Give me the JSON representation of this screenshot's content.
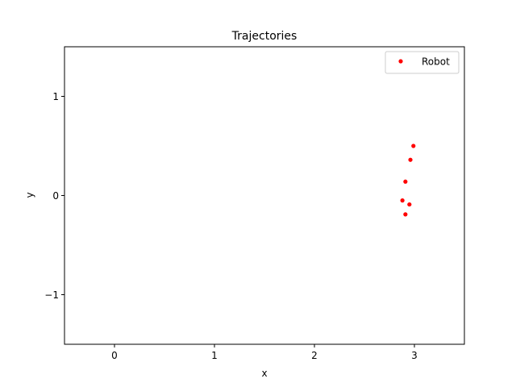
{
  "chart_data": {
    "type": "scatter",
    "title": "Trajectories",
    "xlabel": "x",
    "ylabel": "y",
    "xlim": [
      -0.5,
      3.5
    ],
    "ylim": [
      -1.5,
      1.5
    ],
    "xticks": [
      0,
      1,
      2,
      3
    ],
    "yticks": [
      -1,
      0,
      1
    ],
    "xtick_labels": [
      "0",
      "1",
      "2",
      "3"
    ],
    "ytick_labels": [
      "−1",
      "0",
      "1"
    ],
    "grid": false,
    "legend": {
      "placement": "top-right",
      "entries": [
        "Robot"
      ]
    },
    "series": [
      {
        "name": "Robot",
        "color": "#ff0000",
        "marker": "dot",
        "points": [
          {
            "x": 2.99,
            "y": 0.5
          },
          {
            "x": 2.96,
            "y": 0.36
          },
          {
            "x": 2.91,
            "y": 0.14
          },
          {
            "x": 2.88,
            "y": -0.05
          },
          {
            "x": 2.95,
            "y": -0.09
          },
          {
            "x": 2.91,
            "y": -0.19
          }
        ]
      }
    ]
  }
}
